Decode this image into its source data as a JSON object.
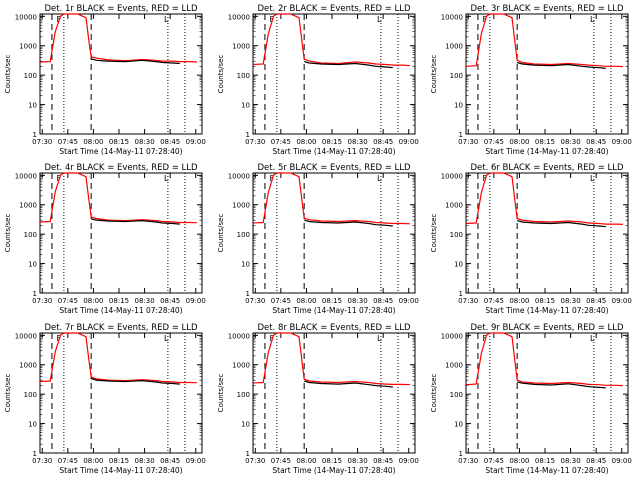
{
  "colors": {
    "events": "#000000",
    "lld": "#ff0000",
    "background": "#ffffff",
    "axes": "#000000"
  },
  "figure": {
    "xlabel": "Start Time (14-May-11 07:28:40)",
    "ylabel": "Counts/sec",
    "xticks": [
      "07:30",
      "07:45",
      "08:00",
      "08:15",
      "08:30",
      "08:45",
      "09:00"
    ],
    "yticks": [
      "1",
      "10",
      "100",
      "1000",
      "10000"
    ]
  },
  "chart_data": [
    {
      "type": "line",
      "title": "Det. 1r  BLACK = Events, RED = LLD",
      "xlim": [
        0,
        95
      ],
      "ylim": [
        1,
        12000
      ],
      "yscale": "log",
      "grid": false,
      "series": [
        {
          "key": "lld",
          "x": [
            0,
            6,
            9,
            12,
            14,
            22,
            27,
            29,
            30,
            33,
            40,
            50,
            60,
            68,
            72,
            78,
            82,
            88,
            92
          ],
          "values": [
            280,
            290,
            3000,
            10000,
            12000,
            12000,
            9000,
            1000,
            420,
            380,
            330,
            310,
            340,
            320,
            300,
            300,
            290,
            290,
            280
          ]
        },
        {
          "key": "events",
          "x": [
            30,
            33,
            40,
            50,
            60,
            68,
            72,
            78,
            82
          ],
          "values": [
            360,
            320,
            300,
            290,
            320,
            290,
            270,
            260,
            250
          ]
        }
      ],
      "vlines_dashed": [
        7,
        30
      ],
      "vlines_dotted": [
        14,
        75,
        85
      ],
      "annotations": [
        {
          "x": 11,
          "text": "F"
        },
        {
          "x": 74,
          "text": "L"
        }
      ]
    },
    {
      "type": "line",
      "title": "Det. 2r  BLACK = Events, RED = LLD",
      "xlim": [
        0,
        95
      ],
      "ylim": [
        1,
        12000
      ],
      "yscale": "log",
      "grid": false,
      "series": [
        {
          "key": "lld",
          "x": [
            0,
            6,
            9,
            12,
            14,
            22,
            27,
            29,
            30,
            33,
            40,
            50,
            60,
            68,
            72,
            78,
            82,
            88,
            92
          ],
          "values": [
            230,
            240,
            2500,
            10000,
            12000,
            12000,
            9000,
            1000,
            350,
            300,
            260,
            250,
            280,
            260,
            240,
            230,
            220,
            220,
            210
          ]
        },
        {
          "key": "events",
          "x": [
            30,
            33,
            40,
            50,
            60,
            68,
            72,
            78,
            82
          ],
          "values": [
            290,
            260,
            240,
            230,
            250,
            220,
            200,
            190,
            180
          ]
        }
      ],
      "vlines_dashed": [
        7,
        30
      ],
      "vlines_dotted": [
        14,
        75,
        85
      ],
      "annotations": [
        {
          "x": 11,
          "text": "F"
        },
        {
          "x": 74,
          "text": "L"
        }
      ]
    },
    {
      "type": "line",
      "title": "Det. 3r  BLACK = Events, RED = LLD",
      "xlim": [
        0,
        95
      ],
      "ylim": [
        1,
        12000
      ],
      "yscale": "log",
      "grid": false,
      "series": [
        {
          "key": "lld",
          "x": [
            0,
            6,
            9,
            12,
            14,
            22,
            27,
            29,
            30,
            33,
            40,
            50,
            60,
            68,
            72,
            78,
            82,
            88,
            92
          ],
          "values": [
            200,
            210,
            2500,
            10000,
            12000,
            12000,
            9000,
            900,
            320,
            270,
            240,
            230,
            250,
            230,
            220,
            210,
            200,
            200,
            195
          ]
        },
        {
          "key": "events",
          "x": [
            30,
            33,
            40,
            50,
            60,
            68,
            72,
            78,
            82
          ],
          "values": [
            270,
            240,
            220,
            210,
            230,
            200,
            190,
            180,
            170
          ]
        }
      ],
      "vlines_dashed": [
        7,
        30
      ],
      "vlines_dotted": [
        14,
        75,
        85
      ],
      "annotations": [
        {
          "x": 11,
          "text": "F"
        },
        {
          "x": 74,
          "text": "L"
        }
      ]
    },
    {
      "type": "line",
      "title": "Det. 4r  BLACK = Events, RED = LLD",
      "xlim": [
        0,
        95
      ],
      "ylim": [
        1,
        12000
      ],
      "yscale": "log",
      "grid": false,
      "series": [
        {
          "key": "lld",
          "x": [
            0,
            6,
            9,
            12,
            14,
            22,
            27,
            29,
            30,
            33,
            40,
            50,
            60,
            68,
            72,
            78,
            82,
            88,
            92
          ],
          "values": [
            260,
            270,
            2800,
            10000,
            12000,
            12000,
            9000,
            1000,
            380,
            340,
            300,
            290,
            310,
            290,
            270,
            260,
            250,
            250,
            245
          ]
        },
        {
          "key": "events",
          "x": [
            30,
            33,
            40,
            50,
            60,
            68,
            72,
            78,
            82
          ],
          "values": [
            330,
            300,
            280,
            270,
            290,
            260,
            240,
            230,
            220
          ]
        }
      ],
      "vlines_dashed": [
        7,
        30
      ],
      "vlines_dotted": [
        14,
        75,
        85
      ],
      "annotations": [
        {
          "x": 11,
          "text": "F"
        },
        {
          "x": 74,
          "text": "L"
        }
      ]
    },
    {
      "type": "line",
      "title": "Det. 5r  BLACK = Events, RED = LLD",
      "xlim": [
        0,
        95
      ],
      "ylim": [
        1,
        12000
      ],
      "yscale": "log",
      "grid": false,
      "series": [
        {
          "key": "lld",
          "x": [
            0,
            6,
            9,
            12,
            14,
            22,
            27,
            29,
            30,
            33,
            40,
            50,
            60,
            68,
            72,
            78,
            82,
            88,
            92
          ],
          "values": [
            240,
            250,
            2600,
            10000,
            12000,
            12000,
            9000,
            1000,
            350,
            310,
            280,
            270,
            290,
            270,
            250,
            240,
            230,
            230,
            225
          ]
        },
        {
          "key": "events",
          "x": [
            30,
            33,
            40,
            50,
            60,
            68,
            72,
            78,
            82
          ],
          "values": [
            300,
            270,
            250,
            240,
            260,
            230,
            210,
            200,
            190
          ]
        }
      ],
      "vlines_dashed": [
        7,
        30
      ],
      "vlines_dotted": [
        14,
        75,
        85
      ],
      "annotations": [
        {
          "x": 11,
          "text": "F"
        },
        {
          "x": 74,
          "text": "L"
        }
      ]
    },
    {
      "type": "line",
      "title": "Det. 6r  BLACK = Events, RED = LLD",
      "xlim": [
        0,
        95
      ],
      "ylim": [
        1,
        12000
      ],
      "yscale": "log",
      "grid": false,
      "series": [
        {
          "key": "lld",
          "x": [
            0,
            6,
            9,
            12,
            14,
            22,
            27,
            29,
            30,
            33,
            40,
            50,
            60,
            68,
            72,
            78,
            82,
            88,
            92
          ],
          "values": [
            230,
            240,
            2500,
            10000,
            12000,
            12000,
            9000,
            950,
            340,
            300,
            270,
            260,
            280,
            260,
            240,
            230,
            220,
            220,
            215
          ]
        },
        {
          "key": "events",
          "x": [
            30,
            33,
            40,
            50,
            60,
            68,
            72,
            78,
            82
          ],
          "values": [
            290,
            260,
            240,
            230,
            250,
            220,
            200,
            190,
            180
          ]
        }
      ],
      "vlines_dashed": [
        7,
        30
      ],
      "vlines_dotted": [
        14,
        75,
        85
      ],
      "annotations": [
        {
          "x": 11,
          "text": "F"
        },
        {
          "x": 74,
          "text": "L"
        }
      ]
    },
    {
      "type": "line",
      "title": "Det. 7r  BLACK = Events, RED = LLD",
      "xlim": [
        0,
        95
      ],
      "ylim": [
        1,
        12000
      ],
      "yscale": "log",
      "grid": false,
      "series": [
        {
          "key": "lld",
          "x": [
            0,
            6,
            9,
            12,
            14,
            22,
            27,
            29,
            30,
            33,
            40,
            50,
            60,
            68,
            72,
            78,
            82,
            88,
            92
          ],
          "values": [
            270,
            280,
            2800,
            10000,
            12000,
            12000,
            9000,
            1000,
            380,
            330,
            300,
            290,
            310,
            290,
            270,
            260,
            250,
            250,
            245
          ]
        },
        {
          "key": "events",
          "x": [
            30,
            33,
            40,
            50,
            60,
            68,
            72,
            78,
            82
          ],
          "values": [
            340,
            300,
            280,
            270,
            290,
            260,
            240,
            230,
            220
          ]
        }
      ],
      "vlines_dashed": [
        7,
        30
      ],
      "vlines_dotted": [
        14,
        75,
        85
      ],
      "annotations": [
        {
          "x": 11,
          "text": "F"
        },
        {
          "x": 74,
          "text": "L"
        }
      ]
    },
    {
      "type": "line",
      "title": "Det. 8r  BLACK = Events, RED = LLD",
      "xlim": [
        0,
        95
      ],
      "ylim": [
        1,
        12000
      ],
      "yscale": "log",
      "grid": false,
      "series": [
        {
          "key": "lld",
          "x": [
            0,
            6,
            9,
            12,
            14,
            22,
            27,
            29,
            30,
            33,
            40,
            50,
            60,
            68,
            72,
            78,
            82,
            88,
            92
          ],
          "values": [
            240,
            250,
            2600,
            10000,
            12000,
            12000,
            9000,
            950,
            320,
            280,
            260,
            250,
            270,
            250,
            230,
            220,
            215,
            215,
            210
          ]
        },
        {
          "key": "events",
          "x": [
            30,
            33,
            40,
            50,
            60,
            68,
            72,
            78,
            82
          ],
          "values": [
            280,
            250,
            230,
            220,
            240,
            210,
            195,
            185,
            175
          ]
        }
      ],
      "vlines_dashed": [
        7,
        30
      ],
      "vlines_dotted": [
        14,
        75,
        85
      ],
      "annotations": [
        {
          "x": 11,
          "text": "F"
        },
        {
          "x": 74,
          "text": "L"
        }
      ]
    },
    {
      "type": "line",
      "title": "Det. 9r  BLACK = Events, RED = LLD",
      "xlim": [
        0,
        95
      ],
      "ylim": [
        1,
        12000
      ],
      "yscale": "log",
      "grid": false,
      "series": [
        {
          "key": "lld",
          "x": [
            0,
            6,
            9,
            12,
            14,
            22,
            27,
            29,
            30,
            33,
            40,
            50,
            60,
            68,
            72,
            78,
            82,
            88,
            92
          ],
          "values": [
            210,
            220,
            2400,
            10000,
            12000,
            12000,
            9000,
            900,
            300,
            260,
            240,
            230,
            250,
            230,
            215,
            210,
            200,
            200,
            195
          ]
        },
        {
          "key": "events",
          "x": [
            30,
            33,
            40,
            50,
            60,
            68,
            72,
            78,
            82
          ],
          "values": [
            260,
            235,
            215,
            205,
            225,
            195,
            180,
            170,
            165
          ]
        }
      ],
      "vlines_dashed": [
        7,
        30
      ],
      "vlines_dotted": [
        14,
        75,
        85
      ],
      "annotations": [
        {
          "x": 11,
          "text": "F"
        },
        {
          "x": 74,
          "text": "L"
        }
      ]
    }
  ]
}
